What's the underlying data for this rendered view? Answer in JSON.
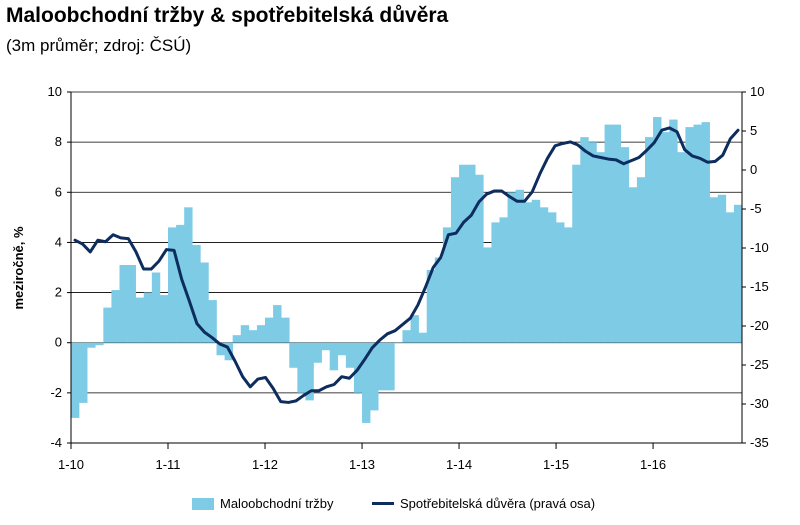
{
  "title": "Maloobchodní tržby & spotřebitelská důvěra",
  "subtitle": "(3m průměr; zdroj: ČSÚ)",
  "colors": {
    "bars": "#7ecbe6",
    "line": "#0d2d5e",
    "axis": "#000000",
    "grid": "#000000"
  },
  "chart_data": {
    "type": "bar+line",
    "title": "Maloobchodní tržby & spotřebitelská důvěra",
    "ylabel": "meziročně, %",
    "ylabel_right": "",
    "xlabel": "",
    "ylim": [
      -4,
      10
    ],
    "ylim_right": [
      -35,
      10
    ],
    "y_ticks": [
      "10",
      "8",
      "6",
      "4",
      "2",
      "0",
      "-2",
      "-4"
    ],
    "y_right_ticks": [
      "10",
      "5",
      "0",
      "-5",
      "-10",
      "-15",
      "-20",
      "-25",
      "-30",
      "-35"
    ],
    "x_tick_labels": [
      "1-10",
      "1-11",
      "1-12",
      "1-13",
      "1-14",
      "1-15",
      "1-16"
    ],
    "grid": "horizontal",
    "legend": "bottom",
    "series": [
      {
        "name": "Maloobchodní tržby",
        "type": "bar",
        "axis": "left",
        "values": [
          -3.0,
          -2.4,
          -0.2,
          -0.1,
          1.4,
          2.1,
          3.1,
          3.1,
          1.8,
          2.0,
          2.8,
          1.9,
          4.6,
          4.7,
          5.4,
          3.9,
          3.2,
          1.7,
          -0.5,
          -0.7,
          0.3,
          0.7,
          0.5,
          0.7,
          1.0,
          1.5,
          1.0,
          -1.0,
          -2.0,
          -2.3,
          -0.8,
          -0.3,
          -1.1,
          -0.5,
          -1.0,
          -2.0,
          -3.2,
          -2.7,
          -1.9,
          -1.9,
          0.0,
          0.5,
          1.1,
          0.4,
          2.9,
          3.4,
          4.6,
          6.6,
          7.1,
          7.1,
          6.7,
          3.8,
          4.8,
          5.0,
          6.0,
          6.1,
          5.6,
          5.7,
          5.4,
          5.2,
          4.8,
          4.6,
          7.1,
          8.2,
          8.0,
          7.6,
          8.7,
          8.7,
          7.8,
          6.2,
          6.6,
          8.2,
          9.0,
          8.4,
          8.9,
          7.6,
          8.6,
          8.7,
          8.8,
          5.8,
          5.9,
          5.2,
          5.5
        ]
      },
      {
        "name": "Spotřebitelská důvěra (pravá osa)",
        "type": "line",
        "axis": "right",
        "values": [
          -9,
          -9.5,
          -10.5,
          -9,
          -9.2,
          -8.3,
          -8.7,
          -8.8,
          -10.5,
          -12.7,
          -12.7,
          -11.7,
          -10.2,
          -10.3,
          -14,
          -16.8,
          -19.7,
          -20.8,
          -21.5,
          -22.3,
          -22.7,
          -24.5,
          -26.5,
          -27.8,
          -26.8,
          -26.6,
          -28,
          -29.7,
          -29.8,
          -29.6,
          -28.9,
          -28.3,
          -28.3,
          -27.8,
          -27.5,
          -26.5,
          -26.7,
          -25.7,
          -24.3,
          -22.8,
          -21.8,
          -21,
          -20.6,
          -19.8,
          -19,
          -17.3,
          -15,
          -12.5,
          -11.2,
          -8.3,
          -8.1,
          -6.7,
          -5.8,
          -4.1,
          -3.1,
          -2.7,
          -2.7,
          -3.4,
          -4,
          -4,
          -2.8,
          -0.5,
          1.5,
          3.1,
          3.4,
          3.6,
          3.2,
          2.4,
          1.8,
          1.6,
          1.4,
          1.3,
          0.8,
          1.2,
          1.6,
          2.5,
          3.5,
          5.1,
          5.4,
          4.9,
          2.6,
          1.8,
          1.5,
          1.0,
          1.1,
          1.9,
          4.0,
          5.1
        ]
      }
    ]
  }
}
